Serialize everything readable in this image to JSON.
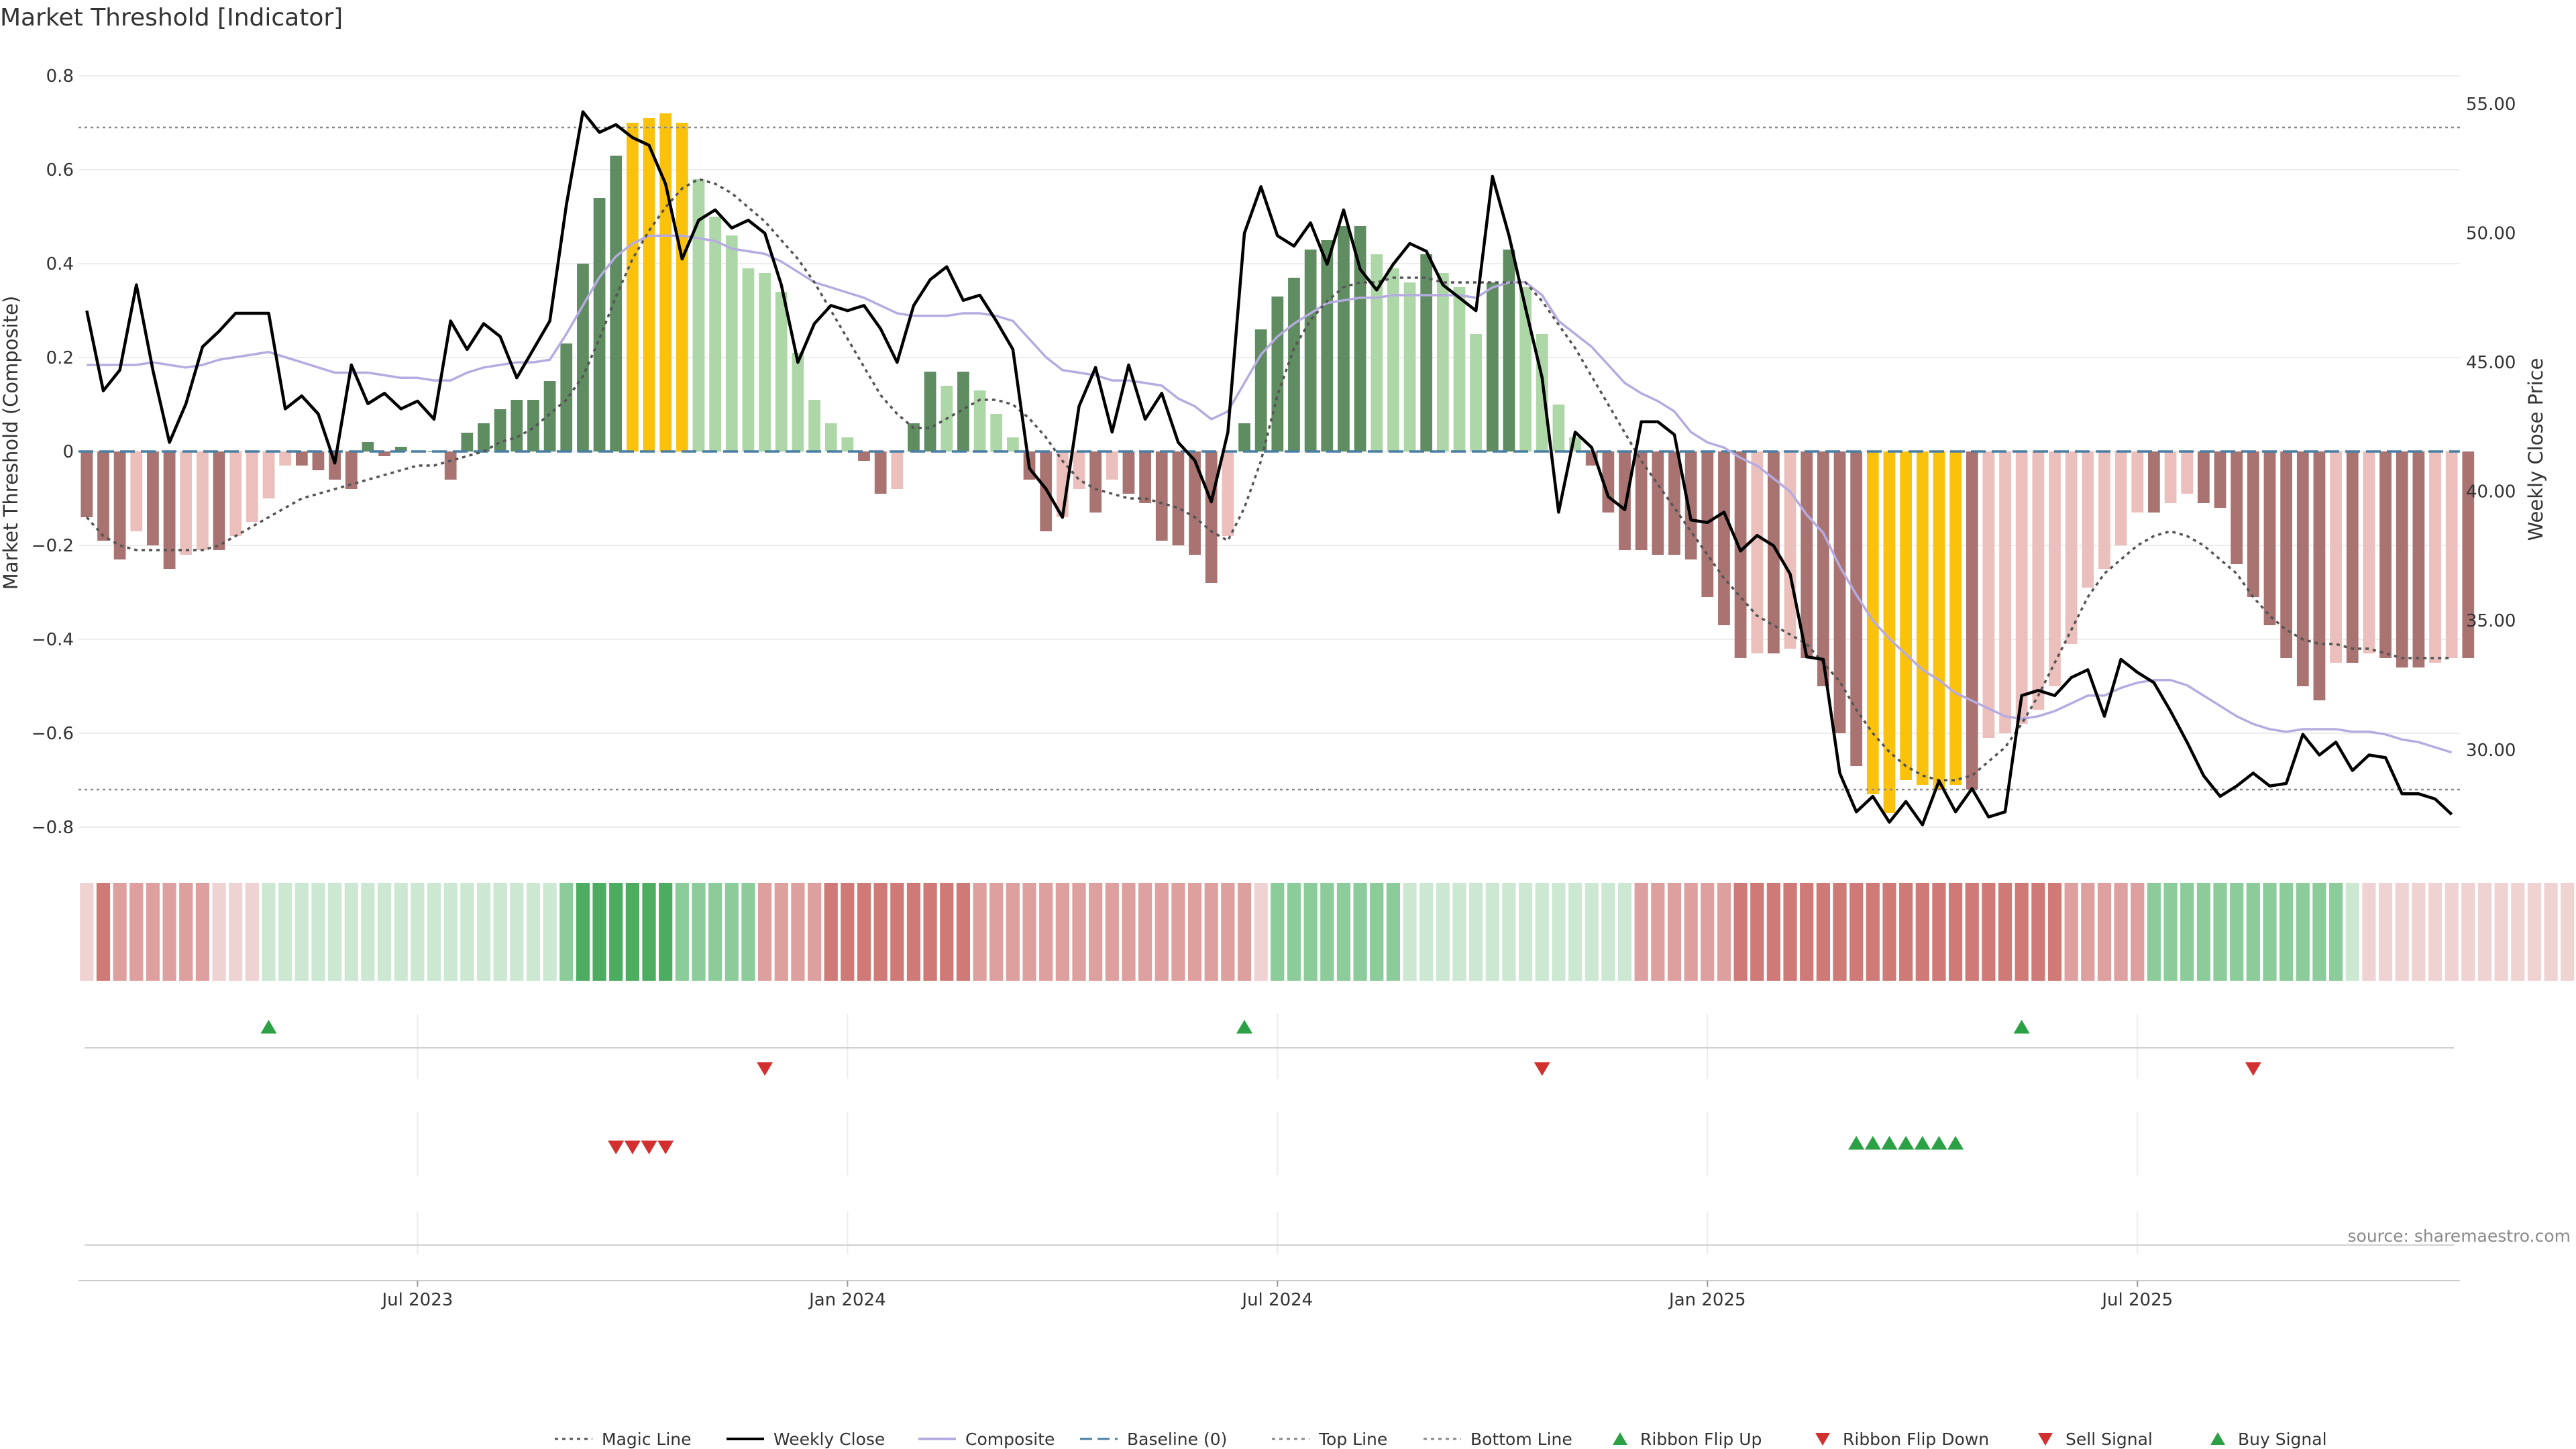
{
  "chart_data": {
    "type": "bar",
    "title": "Market Threshold [Indicator]",
    "ylabel_left": "Market Threshold (Composite)",
    "ylabel_right": "Weekly Close Price",
    "source": "source: sharemaestro.com",
    "ylim_left": [
      -0.85,
      0.85
    ],
    "ylim_right": [
      26.1,
      57.0
    ],
    "left_ticks": [
      "0.8",
      "0.6",
      "0.4",
      "0.2",
      "0",
      "−0.2",
      "−0.4",
      "−0.6",
      "−0.8"
    ],
    "left_tick_values": [
      0.8,
      0.6,
      0.4,
      0.2,
      0,
      -0.2,
      -0.4,
      -0.6,
      -0.8
    ],
    "right_ticks": [
      "55.00",
      "50.00",
      "45.00",
      "40.00",
      "35.00",
      "30.00"
    ],
    "right_tick_values": [
      55,
      50,
      45,
      40,
      35,
      30
    ],
    "x_ticks": [
      "Jul 2023",
      "Jan 2024",
      "Jul 2024",
      "Jan 2025",
      "Jul 2025"
    ],
    "x_tick_weeks": [
      20,
      46,
      72,
      98,
      124
    ],
    "top_line": 0.69,
    "bottom_line": -0.72,
    "baseline": 0,
    "week_count": 144,
    "composite_bars": [
      -0.14,
      -0.19,
      -0.23,
      -0.17,
      -0.2,
      -0.25,
      -0.22,
      -0.21,
      -0.21,
      -0.18,
      -0.15,
      -0.1,
      -0.03,
      -0.03,
      -0.04,
      -0.06,
      -0.08,
      0.02,
      -0.01,
      0.01,
      0.0,
      0.0,
      -0.06,
      0.04,
      0.06,
      0.09,
      0.11,
      0.11,
      0.15,
      0.23,
      0.4,
      0.54,
      0.63,
      0.7,
      0.71,
      0.72,
      0.7,
      0.58,
      0.5,
      0.46,
      0.39,
      0.38,
      0.34,
      0.21,
      0.11,
      0.06,
      0.03,
      -0.02,
      -0.09,
      -0.08,
      0.06,
      0.17,
      0.14,
      0.17,
      0.13,
      0.08,
      0.03,
      -0.06,
      -0.17,
      -0.14,
      -0.08,
      -0.13,
      -0.06,
      -0.09,
      -0.11,
      -0.19,
      -0.2,
      -0.22,
      -0.28,
      -0.18,
      0.06,
      0.26,
      0.33,
      0.37,
      0.43,
      0.45,
      0.48,
      0.48,
      0.42,
      0.39,
      0.36,
      0.42,
      0.38,
      0.35,
      0.25,
      0.36,
      0.43,
      0.35,
      0.25,
      0.1,
      0.03,
      -0.03,
      -0.13,
      -0.21,
      -0.21,
      -0.22,
      -0.22,
      -0.23,
      -0.31,
      -0.37,
      -0.44,
      -0.43,
      -0.43,
      -0.42,
      -0.44,
      -0.5,
      -0.6,
      -0.67,
      -0.73,
      -0.77,
      -0.7,
      -0.71,
      -0.72,
      -0.71,
      -0.72,
      -0.61,
      -0.6,
      -0.58,
      -0.55,
      -0.5,
      -0.41,
      -0.29,
      -0.25,
      -0.2,
      -0.13,
      -0.13,
      -0.11,
      -0.09,
      -0.11,
      -0.12,
      -0.24,
      -0.31,
      -0.37,
      -0.44,
      -0.5,
      -0.53,
      -0.45,
      -0.45,
      -0.43,
      -0.44,
      -0.46,
      -0.46,
      -0.45,
      -0.44,
      -0.44
    ],
    "highlight_bar_weeks": [
      33,
      34,
      35,
      36,
      108,
      109,
      110,
      111,
      112,
      113
    ],
    "series": [
      {
        "name": "Weekly Close",
        "values": [
          47.0,
          43.9,
          44.7,
          48.0,
          44.7,
          41.9,
          43.4,
          45.6,
          46.2,
          46.9,
          46.9,
          46.9,
          43.2,
          43.7,
          43.0,
          41.1,
          44.9,
          43.4,
          43.8,
          43.2,
          43.5,
          42.8,
          46.6,
          45.5,
          46.5,
          46.0,
          44.4,
          45.5,
          46.6,
          51.1,
          54.7,
          53.9,
          54.2,
          53.7,
          53.4,
          51.9,
          49.0,
          50.5,
          50.9,
          50.2,
          50.5,
          50.0,
          48.0,
          45.0,
          46.5,
          47.2,
          47.0,
          47.2,
          46.3,
          45.0,
          47.2,
          48.2,
          48.7,
          47.4,
          47.6,
          46.6,
          45.5,
          40.9,
          40.1,
          39.0,
          43.3,
          44.8,
          42.3,
          44.9,
          42.8,
          43.8,
          41.9,
          41.2,
          39.6,
          42.3,
          50.0,
          51.8,
          49.9,
          49.5,
          50.4,
          48.8,
          50.9,
          48.6,
          47.8,
          48.8,
          49.6,
          49.3,
          48.0,
          47.5,
          47.0,
          52.2,
          49.9,
          47.1,
          44.4,
          39.2,
          42.3,
          41.7,
          39.8,
          39.3,
          42.7,
          42.7,
          42.2,
          38.9,
          38.8,
          39.2,
          37.7,
          38.3,
          37.9,
          36.8,
          33.6,
          33.5,
          29.1,
          27.6,
          28.2,
          27.2,
          28.0,
          27.1,
          28.8,
          27.6,
          28.5,
          27.4,
          27.6,
          32.1,
          32.3,
          32.1,
          32.8,
          33.1,
          31.3,
          33.5,
          33.0,
          32.6,
          31.5,
          30.3,
          29.0,
          28.2,
          28.6,
          29.1,
          28.6,
          28.7,
          30.6,
          29.8,
          30.3,
          29.2,
          29.8,
          29.7,
          28.3,
          28.3,
          28.1,
          27.5
        ]
      },
      {
        "name": "Composite",
        "values": [
          44.9,
          44.9,
          44.9,
          44.9,
          45.0,
          44.9,
          44.8,
          44.9,
          45.1,
          45.2,
          45.3,
          45.4,
          45.2,
          45.0,
          44.8,
          44.6,
          44.6,
          44.6,
          44.5,
          44.4,
          44.4,
          44.3,
          44.3,
          44.6,
          44.8,
          44.9,
          45.0,
          45.0,
          45.1,
          46.1,
          47.2,
          48.3,
          49.1,
          49.6,
          49.9,
          49.9,
          49.9,
          49.8,
          49.7,
          49.4,
          49.3,
          49.2,
          48.9,
          48.5,
          48.1,
          47.9,
          47.7,
          47.5,
          47.2,
          46.9,
          46.8,
          46.8,
          46.8,
          46.9,
          46.9,
          46.8,
          46.6,
          45.9,
          45.2,
          44.7,
          44.6,
          44.5,
          44.3,
          44.3,
          44.2,
          44.1,
          43.6,
          43.3,
          42.8,
          43.1,
          44.2,
          45.3,
          46.0,
          46.5,
          46.9,
          47.3,
          47.4,
          47.5,
          47.5,
          47.6,
          47.6,
          47.6,
          47.6,
          47.6,
          47.5,
          47.9,
          48.1,
          48.1,
          47.6,
          46.6,
          46.1,
          45.6,
          44.9,
          44.2,
          43.8,
          43.5,
          43.1,
          42.3,
          41.9,
          41.7,
          41.3,
          41.0,
          40.5,
          40.0,
          39.1,
          38.4,
          37.1,
          36.0,
          35.0,
          34.3,
          33.7,
          33.1,
          32.7,
          32.2,
          31.9,
          31.6,
          31.3,
          31.2,
          31.3,
          31.5,
          31.8,
          32.1,
          32.1,
          32.4,
          32.6,
          32.7,
          32.7,
          32.5,
          32.1,
          31.7,
          31.3,
          31.0,
          30.8,
          30.7,
          30.8,
          30.8,
          30.8,
          30.7,
          30.7,
          30.6,
          30.4,
          30.3,
          30.1,
          29.9
        ]
      },
      {
        "name": "Magic Line",
        "values": [
          -0.14,
          -0.18,
          -0.2,
          -0.21,
          -0.21,
          -0.21,
          -0.21,
          -0.21,
          -0.2,
          -0.18,
          -0.16,
          -0.14,
          -0.12,
          -0.1,
          -0.09,
          -0.08,
          -0.07,
          -0.06,
          -0.05,
          -0.04,
          -0.03,
          -0.03,
          -0.02,
          -0.01,
          0.0,
          0.02,
          0.03,
          0.05,
          0.08,
          0.11,
          0.16,
          0.24,
          0.33,
          0.41,
          0.47,
          0.52,
          0.56,
          0.58,
          0.57,
          0.55,
          0.52,
          0.49,
          0.45,
          0.41,
          0.36,
          0.3,
          0.24,
          0.18,
          0.12,
          0.08,
          0.05,
          0.05,
          0.07,
          0.09,
          0.11,
          0.11,
          0.1,
          0.07,
          0.03,
          -0.02,
          -0.06,
          -0.08,
          -0.09,
          -0.1,
          -0.1,
          -0.11,
          -0.12,
          -0.14,
          -0.17,
          -0.19,
          -0.12,
          -0.02,
          0.12,
          0.22,
          0.28,
          0.32,
          0.35,
          0.36,
          0.36,
          0.37,
          0.37,
          0.37,
          0.36,
          0.36,
          0.36,
          0.36,
          0.36,
          0.36,
          0.32,
          0.27,
          0.22,
          0.16,
          0.1,
          0.04,
          -0.02,
          -0.07,
          -0.12,
          -0.17,
          -0.22,
          -0.27,
          -0.31,
          -0.35,
          -0.37,
          -0.39,
          -0.41,
          -0.45,
          -0.49,
          -0.55,
          -0.6,
          -0.64,
          -0.67,
          -0.69,
          -0.7,
          -0.7,
          -0.69,
          -0.66,
          -0.63,
          -0.58,
          -0.52,
          -0.45,
          -0.38,
          -0.31,
          -0.26,
          -0.23,
          -0.2,
          -0.18,
          -0.17,
          -0.18,
          -0.2,
          -0.23,
          -0.26,
          -0.31,
          -0.35,
          -0.38,
          -0.4,
          -0.41,
          -0.41,
          -0.42,
          -0.42,
          -0.43,
          -0.44,
          -0.44,
          -0.44,
          -0.44
        ]
      }
    ],
    "ribbon": [
      -1,
      -3,
      -2,
      -2,
      -2,
      -2,
      -2,
      -2,
      -1,
      -1,
      -1,
      1,
      1,
      1,
      1,
      1,
      1,
      1,
      1,
      1,
      1,
      1,
      1,
      1,
      1,
      1,
      1,
      1,
      1,
      2,
      3,
      3,
      3,
      3,
      3,
      3,
      2,
      2,
      2,
      2,
      2,
      -2,
      -2,
      -2,
      -2,
      -3,
      -3,
      -3,
      -3,
      -3,
      -3,
      -3,
      -3,
      -3,
      -2,
      -2,
      -2,
      -2,
      -2,
      -2,
      -2,
      -2,
      -2,
      -2,
      -2,
      -2,
      -2,
      -2,
      -2,
      -2,
      -2,
      -1,
      2,
      2,
      2,
      2,
      2,
      2,
      2,
      2,
      1,
      1,
      1,
      1,
      1,
      1,
      1,
      1,
      1,
      1,
      1,
      1,
      1,
      1,
      -2,
      -2,
      -2,
      -2,
      -2,
      -2,
      -3,
      -3,
      -3,
      -3,
      -3,
      -3,
      -3,
      -3,
      -3,
      -3,
      -3,
      -3,
      -3,
      -3,
      -3,
      -3,
      -3,
      -3,
      -3,
      -3,
      -2,
      -2,
      -2,
      -2,
      -2,
      2,
      2,
      2,
      2,
      2,
      2,
      2,
      2,
      2,
      2,
      2,
      2,
      1,
      -1,
      -1,
      -1,
      -1,
      -1,
      -1,
      -1,
      -1,
      -1,
      -1,
      -1,
      -1,
      -1,
      -1
    ],
    "ribbon_colors": {
      "-3": "#d07a77",
      "-2": "#dea09e",
      "-1": "#efd3d2",
      "1": "#cce8d2",
      "2": "#8ccc9b",
      "3": "#4cad60"
    },
    "ribbon_flip_up_weeks": [
      11,
      70,
      117
    ],
    "ribbon_flip_down_weeks": [
      41,
      88,
      131
    ],
    "sell_signal_weeks": [
      32,
      33,
      34,
      35
    ],
    "buy_signal_weeks": [
      107,
      108,
      109,
      110,
      111,
      112,
      113
    ],
    "colors": {
      "strong_green": "#5f8c60",
      "light_green": "#aed7a8",
      "strong_red": "#a87371",
      "light_red": "#ebc0bc",
      "highlight": "#fbc20d",
      "weekly_close": "#000000",
      "composite": "#b6abe0",
      "magic": "#555555",
      "baseline": "#4a7ea3",
      "signal_green": "#2ca045",
      "signal_red": "#d22f2f"
    },
    "legend": [
      {
        "label": "Magic Line",
        "style": "dotted",
        "color": "#555555"
      },
      {
        "label": "Weekly Close",
        "style": "line",
        "color": "#000000"
      },
      {
        "label": "Composite",
        "style": "line",
        "color": "#b6abe0"
      },
      {
        "label": "Baseline (0)",
        "style": "dashed",
        "color": "#4a7ea3"
      },
      {
        "label": "Top Line",
        "style": "dotted",
        "color": "#888888"
      },
      {
        "label": "Bottom Line",
        "style": "dotted",
        "color": "#888888"
      },
      {
        "label": "Ribbon Flip Up",
        "style": "tri-up",
        "color": "#2ca045"
      },
      {
        "label": "Ribbon Flip Down",
        "style": "tri-down",
        "color": "#d22f2f"
      },
      {
        "label": "Sell Signal",
        "style": "tri-down",
        "color": "#d22f2f"
      },
      {
        "label": "Buy Signal",
        "style": "tri-up",
        "color": "#2ca045"
      }
    ]
  }
}
